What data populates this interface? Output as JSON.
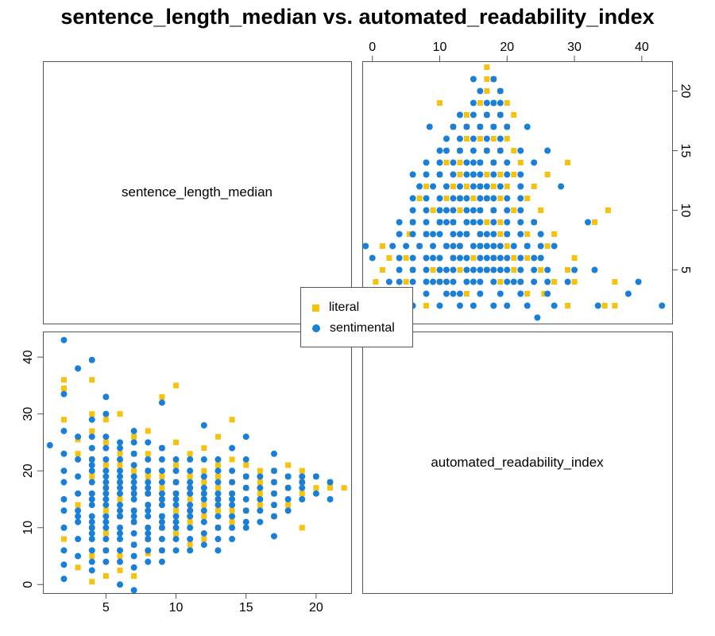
{
  "title": "sentence_length_median vs. automated_readability_index",
  "colors": {
    "literal": "#f5c20f",
    "sentimental": "#1a7fd6"
  },
  "legend": {
    "items": [
      {
        "label": "literal",
        "shape": "square"
      },
      {
        "label": "sentimental",
        "shape": "circle"
      }
    ]
  },
  "chart_data": {
    "type": "scatter",
    "subtype": "pairs-matrix",
    "title": "sentence_length_median vs. automated_readability_index",
    "variables": [
      "sentence_length_median",
      "automated_readability_index"
    ],
    "axes": {
      "sentence_length_median": {
        "range": [
          0.5,
          22.5
        ],
        "ticks": [
          5,
          10,
          15,
          20
        ]
      },
      "automated_readability_index": {
        "range": [
          -1.5,
          44.5
        ],
        "ticks": [
          0,
          10,
          20,
          30,
          40
        ]
      }
    },
    "x_label": "sentence_length_median",
    "y_label": "automated_readability_index",
    "legend_position": "center",
    "grid": false,
    "series": [
      {
        "name": "literal",
        "shape": "square",
        "points": [
          [
            2,
            36
          ],
          [
            2,
            34.5
          ],
          [
            2,
            29
          ],
          [
            2,
            8
          ],
          [
            3,
            25.5
          ],
          [
            3,
            23
          ],
          [
            3,
            3
          ],
          [
            3,
            14
          ],
          [
            4,
            36
          ],
          [
            4,
            30
          ],
          [
            4,
            27
          ],
          [
            4,
            22
          ],
          [
            4,
            19
          ],
          [
            4,
            10
          ],
          [
            4,
            0.5
          ],
          [
            4,
            5
          ],
          [
            5,
            29
          ],
          [
            5,
            25
          ],
          [
            5,
            21
          ],
          [
            5,
            17
          ],
          [
            5,
            13
          ],
          [
            5,
            9
          ],
          [
            5,
            6
          ],
          [
            5,
            1.5
          ],
          [
            6,
            30
          ],
          [
            6,
            23
          ],
          [
            6,
            18
          ],
          [
            6,
            12
          ],
          [
            6,
            5
          ],
          [
            6,
            2.5
          ],
          [
            6,
            21
          ],
          [
            6,
            15
          ],
          [
            7,
            26
          ],
          [
            7,
            20
          ],
          [
            7,
            16
          ],
          [
            7,
            11
          ],
          [
            7,
            7
          ],
          [
            7,
            1.5
          ],
          [
            7,
            23
          ],
          [
            7,
            13
          ],
          [
            8,
            27
          ],
          [
            8,
            23
          ],
          [
            8,
            19
          ],
          [
            8,
            14
          ],
          [
            8,
            8
          ],
          [
            8,
            5.5
          ],
          [
            8,
            20
          ],
          [
            8,
            16
          ],
          [
            9,
            33
          ],
          [
            9,
            24
          ],
          [
            9,
            17
          ],
          [
            9,
            12
          ],
          [
            9,
            6
          ],
          [
            9,
            19
          ],
          [
            9,
            15
          ],
          [
            9,
            10
          ],
          [
            10,
            35
          ],
          [
            10,
            25
          ],
          [
            10,
            21
          ],
          [
            10,
            16
          ],
          [
            10,
            9
          ],
          [
            10,
            18
          ],
          [
            10,
            13
          ],
          [
            11,
            23
          ],
          [
            11,
            19
          ],
          [
            11,
            15
          ],
          [
            11,
            11
          ],
          [
            11,
            7
          ],
          [
            11,
            17
          ],
          [
            11,
            13
          ],
          [
            12,
            24
          ],
          [
            12,
            20
          ],
          [
            12,
            16
          ],
          [
            12,
            12
          ],
          [
            12,
            8
          ],
          [
            12,
            18
          ],
          [
            12,
            14
          ],
          [
            13,
            26
          ],
          [
            13,
            21
          ],
          [
            13,
            17
          ],
          [
            13,
            13
          ],
          [
            13,
            10
          ],
          [
            13,
            19
          ],
          [
            13,
            15
          ],
          [
            14,
            29
          ],
          [
            14,
            22
          ],
          [
            14,
            18
          ],
          [
            14,
            13
          ],
          [
            14,
            11
          ],
          [
            14,
            16
          ],
          [
            15,
            21
          ],
          [
            15,
            17
          ],
          [
            15,
            13
          ],
          [
            15,
            19
          ],
          [
            16,
            20
          ],
          [
            16,
            16
          ],
          [
            16,
            14
          ],
          [
            16,
            18
          ],
          [
            17,
            20
          ],
          [
            17,
            16
          ],
          [
            17,
            12
          ],
          [
            17,
            18
          ],
          [
            17,
            14
          ],
          [
            18,
            21
          ],
          [
            18,
            17
          ],
          [
            18,
            14
          ],
          [
            18,
            19
          ],
          [
            19,
            20
          ],
          [
            19,
            16
          ],
          [
            19,
            10
          ],
          [
            19,
            18
          ],
          [
            20,
            19
          ],
          [
            20,
            17
          ],
          [
            21,
            18
          ],
          [
            21,
            17
          ],
          [
            22,
            17
          ]
        ]
      },
      {
        "name": "sentimental",
        "shape": "circle",
        "points": [
          [
            1,
            24.5
          ],
          [
            2,
            43
          ],
          [
            2,
            33.5
          ],
          [
            2,
            27
          ],
          [
            2,
            23
          ],
          [
            2,
            20
          ],
          [
            2,
            18
          ],
          [
            2,
            15
          ],
          [
            2,
            13
          ],
          [
            2,
            10
          ],
          [
            2,
            6
          ],
          [
            2,
            3.5
          ],
          [
            2,
            1
          ],
          [
            3,
            38
          ],
          [
            3,
            26
          ],
          [
            3,
            22
          ],
          [
            3,
            19
          ],
          [
            3,
            16
          ],
          [
            3,
            13
          ],
          [
            3,
            11
          ],
          [
            3,
            8
          ],
          [
            3,
            5
          ],
          [
            3,
            12
          ],
          [
            4,
            39.5
          ],
          [
            4,
            29
          ],
          [
            4,
            26
          ],
          [
            4,
            24
          ],
          [
            4,
            22
          ],
          [
            4,
            20
          ],
          [
            4,
            18
          ],
          [
            4,
            16
          ],
          [
            4,
            14
          ],
          [
            4,
            12
          ],
          [
            4,
            10
          ],
          [
            4,
            8
          ],
          [
            4,
            6
          ],
          [
            4,
            4
          ],
          [
            4,
            2.5
          ],
          [
            4,
            21
          ],
          [
            4,
            15
          ],
          [
            4,
            11
          ],
          [
            4,
            9
          ],
          [
            5,
            33
          ],
          [
            5,
            30
          ],
          [
            5,
            26
          ],
          [
            5,
            24
          ],
          [
            5,
            22
          ],
          [
            5,
            20
          ],
          [
            5,
            18
          ],
          [
            5,
            16
          ],
          [
            5,
            14
          ],
          [
            5,
            12
          ],
          [
            5,
            10
          ],
          [
            5,
            8
          ],
          [
            5,
            6
          ],
          [
            5,
            4
          ],
          [
            5,
            19
          ],
          [
            5,
            15
          ],
          [
            5,
            11
          ],
          [
            5,
            17
          ],
          [
            6,
            25
          ],
          [
            6,
            24
          ],
          [
            6,
            22
          ],
          [
            6,
            20
          ],
          [
            6,
            18
          ],
          [
            6,
            16
          ],
          [
            6,
            14
          ],
          [
            6,
            12
          ],
          [
            6,
            10
          ],
          [
            6,
            8
          ],
          [
            6,
            6
          ],
          [
            6,
            4
          ],
          [
            6,
            0
          ],
          [
            6,
            19
          ],
          [
            6,
            13
          ],
          [
            6,
            9
          ],
          [
            6,
            17
          ],
          [
            7,
            27
          ],
          [
            7,
            25
          ],
          [
            7,
            23
          ],
          [
            7,
            21
          ],
          [
            7,
            19
          ],
          [
            7,
            17
          ],
          [
            7,
            15
          ],
          [
            7,
            13
          ],
          [
            7,
            11
          ],
          [
            7,
            9
          ],
          [
            7,
            7
          ],
          [
            7,
            5
          ],
          [
            7,
            3
          ],
          [
            7,
            -1
          ],
          [
            7,
            18
          ],
          [
            7,
            12
          ],
          [
            7,
            16
          ],
          [
            8,
            25
          ],
          [
            8,
            22
          ],
          [
            8,
            20
          ],
          [
            8,
            18
          ],
          [
            8,
            16
          ],
          [
            8,
            14
          ],
          [
            8,
            12
          ],
          [
            8,
            10
          ],
          [
            8,
            8
          ],
          [
            8,
            6
          ],
          [
            8,
            4
          ],
          [
            8,
            17
          ],
          [
            8,
            13
          ],
          [
            8,
            9
          ],
          [
            9,
            32
          ],
          [
            9,
            24
          ],
          [
            9,
            22
          ],
          [
            9,
            20
          ],
          [
            9,
            18
          ],
          [
            9,
            16
          ],
          [
            9,
            14
          ],
          [
            9,
            12
          ],
          [
            9,
            10
          ],
          [
            9,
            8
          ],
          [
            9,
            6
          ],
          [
            9,
            4
          ],
          [
            9,
            15
          ],
          [
            9,
            11
          ],
          [
            10,
            22
          ],
          [
            10,
            20
          ],
          [
            10,
            18
          ],
          [
            10,
            16
          ],
          [
            10,
            14
          ],
          [
            10,
            12
          ],
          [
            10,
            10
          ],
          [
            10,
            8
          ],
          [
            10,
            6
          ],
          [
            10,
            15
          ],
          [
            10,
            11
          ],
          [
            11,
            22
          ],
          [
            11,
            20
          ],
          [
            11,
            18
          ],
          [
            11,
            16
          ],
          [
            11,
            14
          ],
          [
            11,
            12
          ],
          [
            11,
            10
          ],
          [
            11,
            8
          ],
          [
            11,
            6
          ],
          [
            11,
            17
          ],
          [
            11,
            13
          ],
          [
            12,
            28
          ],
          [
            12,
            22
          ],
          [
            12,
            19
          ],
          [
            12,
            17
          ],
          [
            12,
            15
          ],
          [
            12,
            13
          ],
          [
            12,
            11
          ],
          [
            12,
            9
          ],
          [
            12,
            7
          ],
          [
            12,
            16
          ],
          [
            13,
            22
          ],
          [
            13,
            20
          ],
          [
            13,
            18
          ],
          [
            13,
            16
          ],
          [
            13,
            14
          ],
          [
            13,
            12
          ],
          [
            13,
            10
          ],
          [
            13,
            8
          ],
          [
            13,
            6
          ],
          [
            13,
            15
          ],
          [
            14,
            24
          ],
          [
            14,
            20
          ],
          [
            14,
            18
          ],
          [
            14,
            16
          ],
          [
            14,
            14
          ],
          [
            14,
            12
          ],
          [
            14,
            10
          ],
          [
            14,
            8
          ],
          [
            14,
            15
          ],
          [
            15,
            26
          ],
          [
            15,
            22
          ],
          [
            15,
            19
          ],
          [
            15,
            17
          ],
          [
            15,
            15
          ],
          [
            15,
            13
          ],
          [
            15,
            11
          ],
          [
            15,
            10
          ],
          [
            16,
            19
          ],
          [
            16,
            17
          ],
          [
            16,
            15
          ],
          [
            16,
            13
          ],
          [
            16,
            11
          ],
          [
            17,
            23
          ],
          [
            17,
            20
          ],
          [
            17,
            18
          ],
          [
            17,
            16
          ],
          [
            17,
            14
          ],
          [
            17,
            12
          ],
          [
            17,
            8.5
          ],
          [
            18,
            19
          ],
          [
            18,
            17
          ],
          [
            18,
            15
          ],
          [
            18,
            13
          ],
          [
            19,
            19
          ],
          [
            19,
            18
          ],
          [
            19,
            17
          ],
          [
            19,
            15
          ],
          [
            20,
            19
          ],
          [
            20,
            16
          ],
          [
            21,
            18
          ],
          [
            21,
            15
          ]
        ]
      }
    ]
  }
}
